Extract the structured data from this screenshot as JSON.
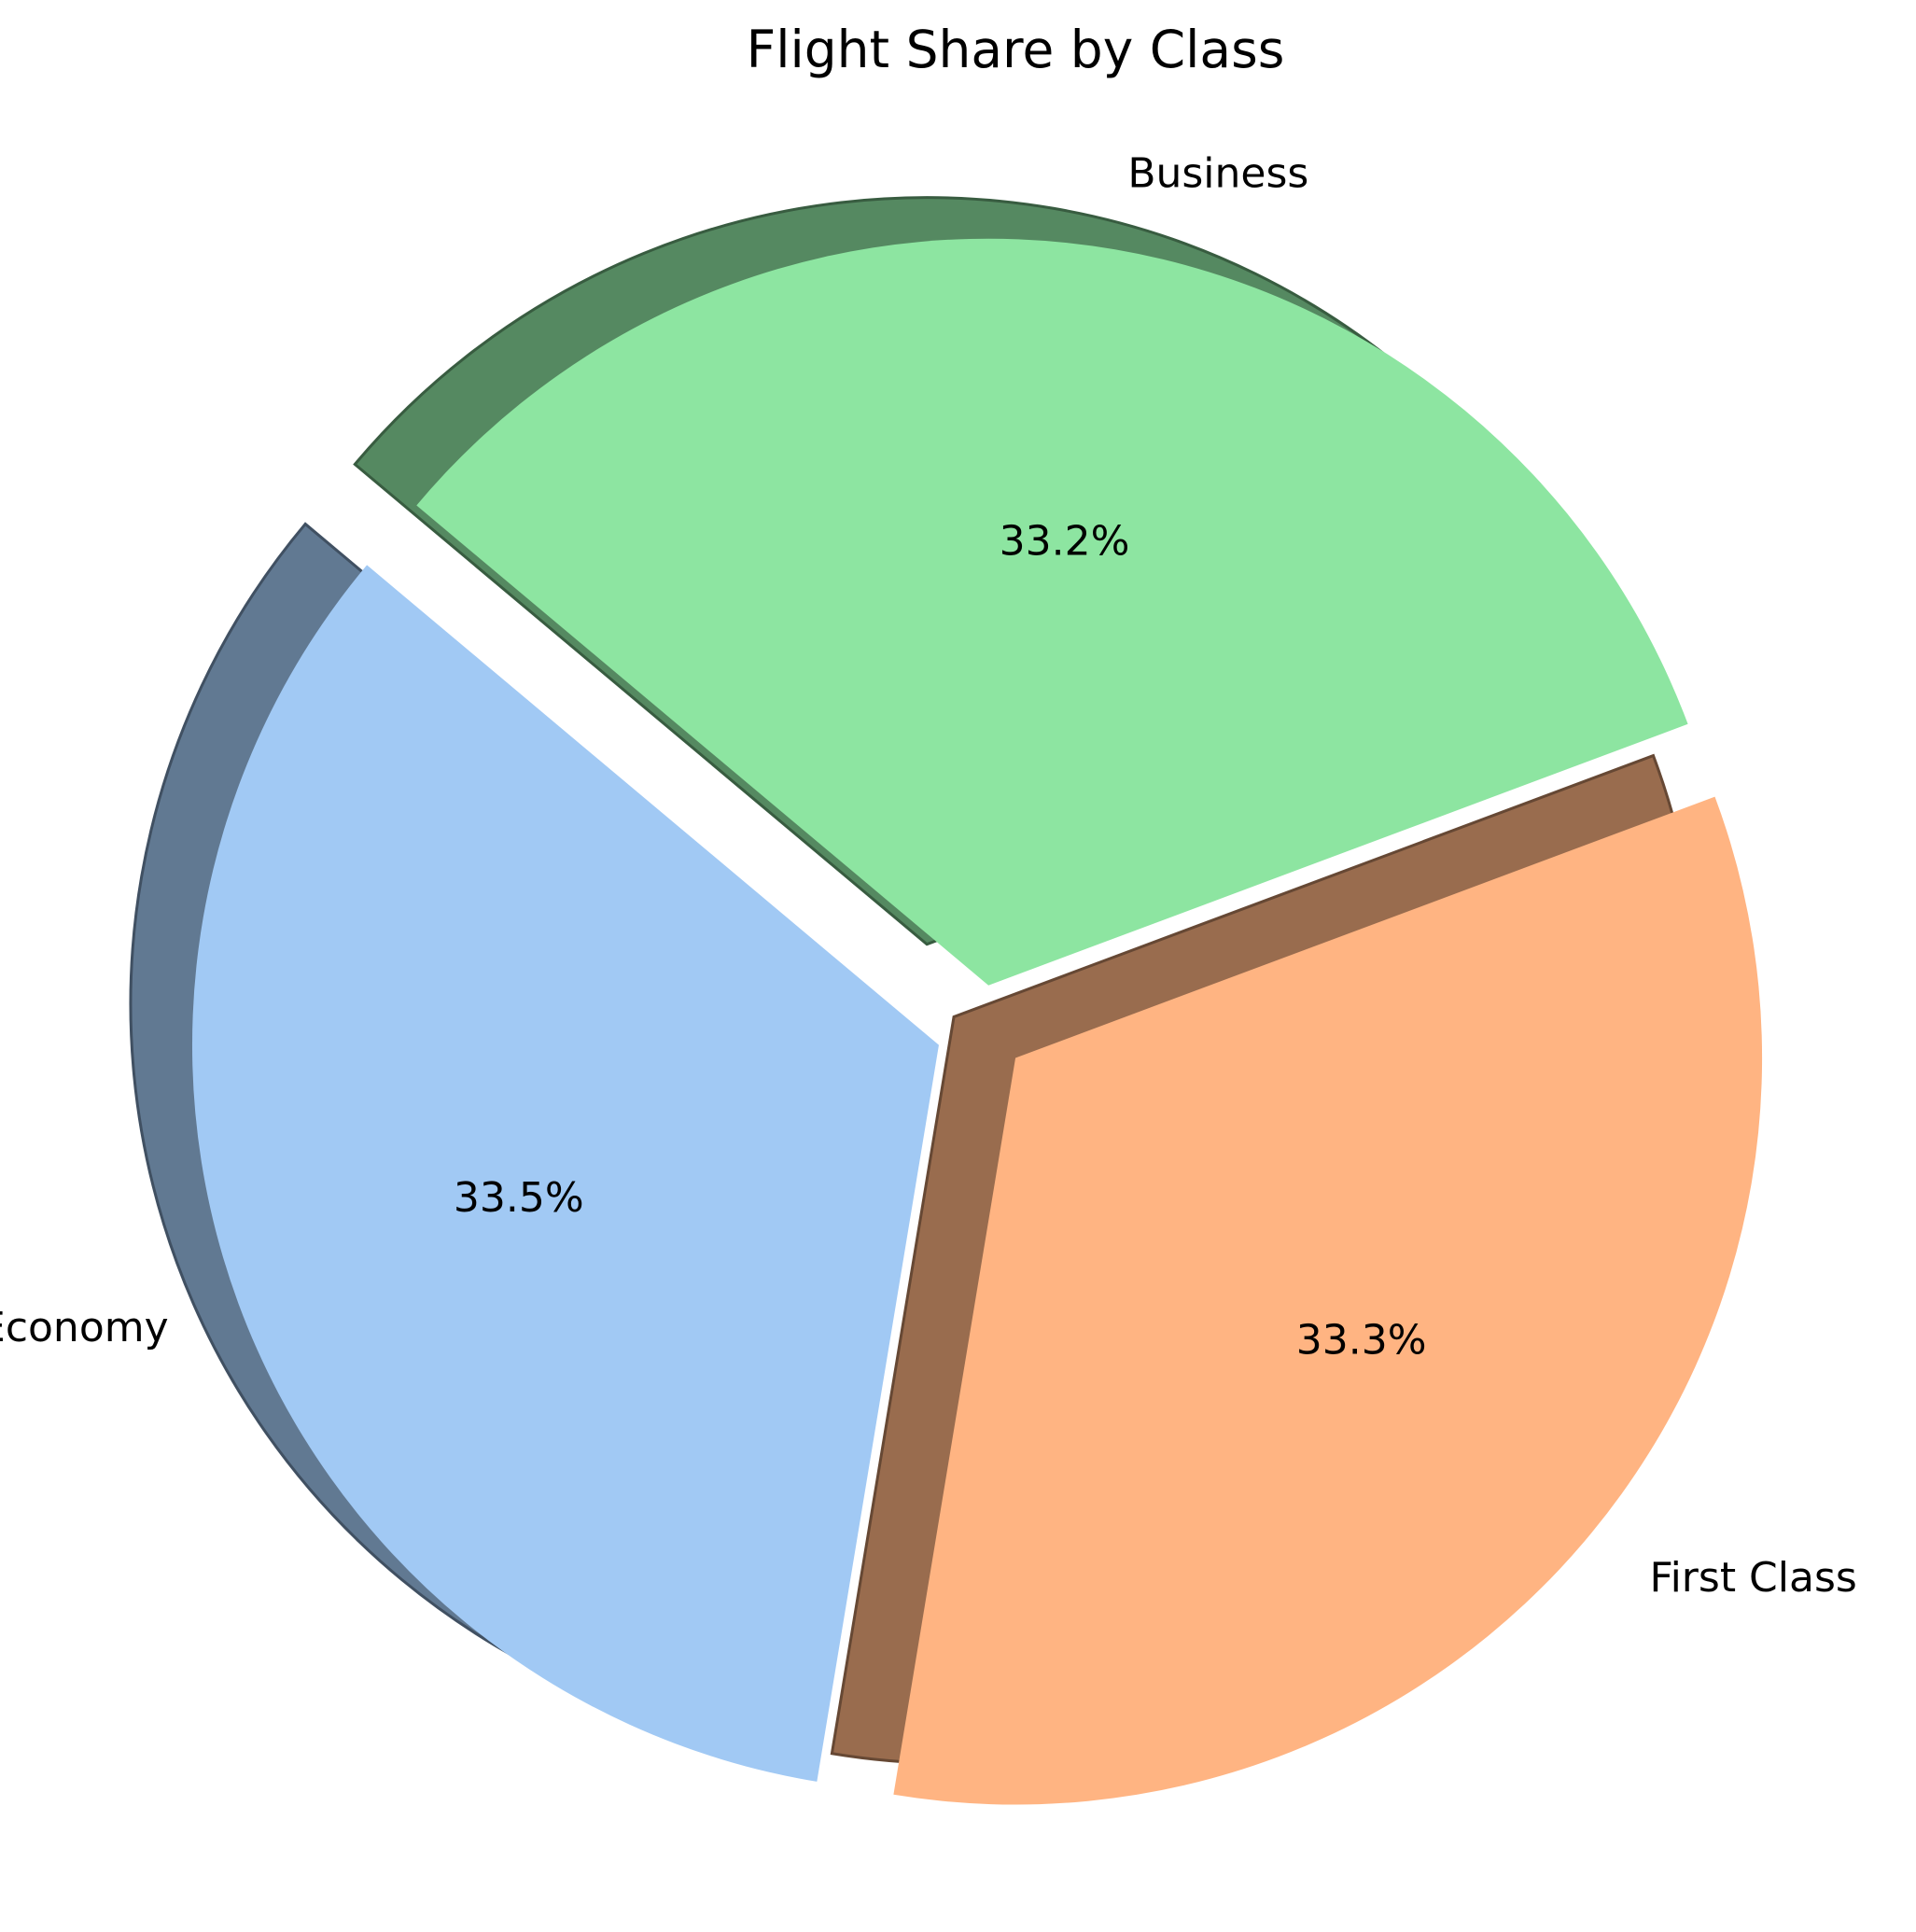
{
  "chart_data": {
    "type": "pie",
    "title": "Flight Share by Class",
    "slices": [
      {
        "label": "Economy",
        "value": 33.5,
        "pct_label": "33.5%",
        "color": "#a1c9f4",
        "exploded": true
      },
      {
        "label": "First Class",
        "value": 33.3,
        "pct_label": "33.3%",
        "color": "#ffb482",
        "exploded": true
      },
      {
        "label": "Business",
        "value": 33.2,
        "pct_label": "33.2%",
        "color": "#8de5a1",
        "exploded": true
      }
    ],
    "shadow": true,
    "legend": "none"
  }
}
